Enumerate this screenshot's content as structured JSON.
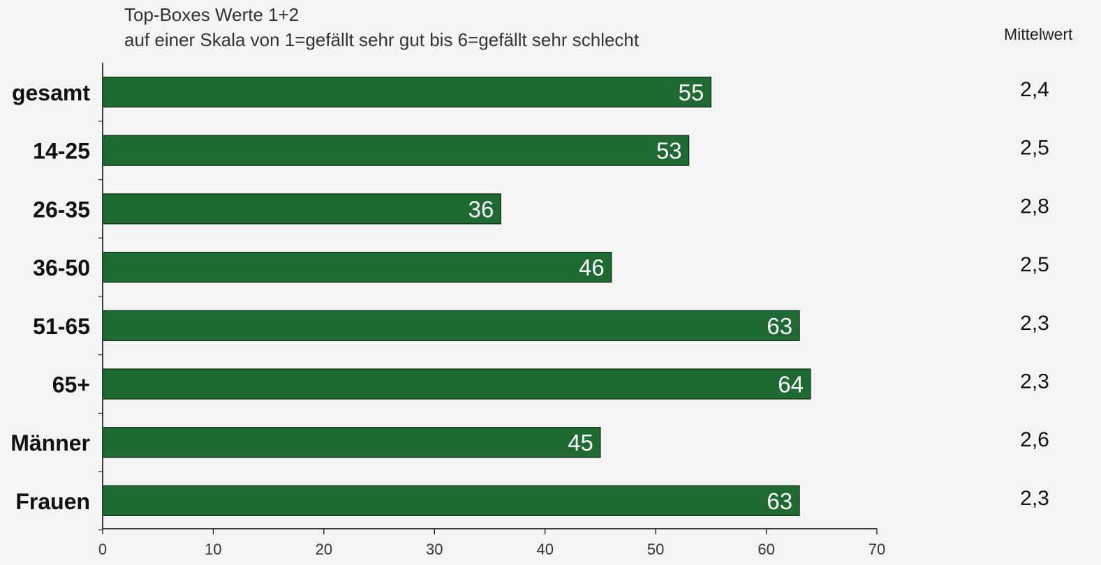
{
  "chart_data": {
    "type": "bar",
    "orientation": "horizontal",
    "title": "Top-Boxes Werte 1+2",
    "subtitle": "auf einer Skala von 1=gefällt sehr gut bis 6=gefällt sehr schlecht",
    "categories": [
      "gesamt",
      "14-25",
      "26-35",
      "36-50",
      "51-65",
      "65+",
      "Männer",
      "Frauen"
    ],
    "values": [
      55,
      53,
      36,
      46,
      63,
      64,
      45,
      63
    ],
    "value_labels": [
      "55",
      "53",
      "36",
      "46",
      "63",
      "64",
      "45",
      "63"
    ],
    "xlim": [
      0,
      70
    ],
    "x_ticks": [
      "0",
      "10",
      "20",
      "30",
      "40",
      "50",
      "60",
      "70"
    ],
    "xlabel": "",
    "ylabel": "",
    "grid": false,
    "bar_color": "#1e6a32",
    "secondary_column": {
      "header": "Mittelwert",
      "values": [
        "2,4",
        "2,5",
        "2,8",
        "2,5",
        "2,3",
        "2,3",
        "2,6",
        "2,3"
      ]
    }
  }
}
